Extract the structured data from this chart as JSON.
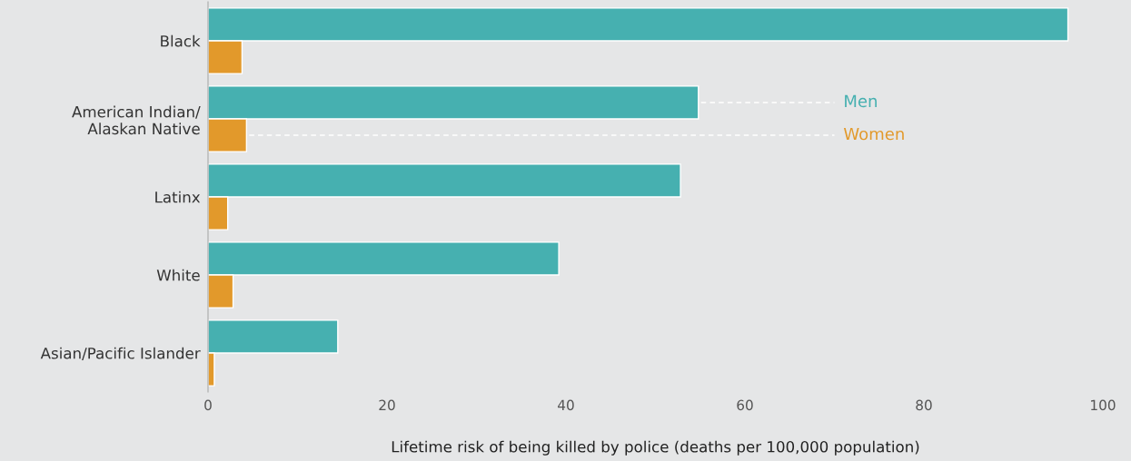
{
  "chart_data": {
    "type": "bar",
    "orientation": "horizontal",
    "xlabel": "Lifetime risk of being killed by police (deaths per 100,000 population)",
    "categories": [
      "Black",
      "American Indian/\nAlaskan Native",
      "Latinx",
      "White",
      "Asian/Pacific Islander"
    ],
    "series": [
      {
        "name": "Men",
        "color": "#46b0b0",
        "values": [
          96.1,
          54.8,
          52.8,
          39.2,
          14.5
        ]
      },
      {
        "name": "Women",
        "color": "#e2992b",
        "values": [
          3.8,
          4.3,
          2.2,
          2.8,
          0.7
        ]
      }
    ],
    "xlim": [
      0,
      100
    ],
    "xticks": [
      0,
      20,
      40,
      60,
      80,
      100
    ],
    "grid": false,
    "legend": "right"
  }
}
